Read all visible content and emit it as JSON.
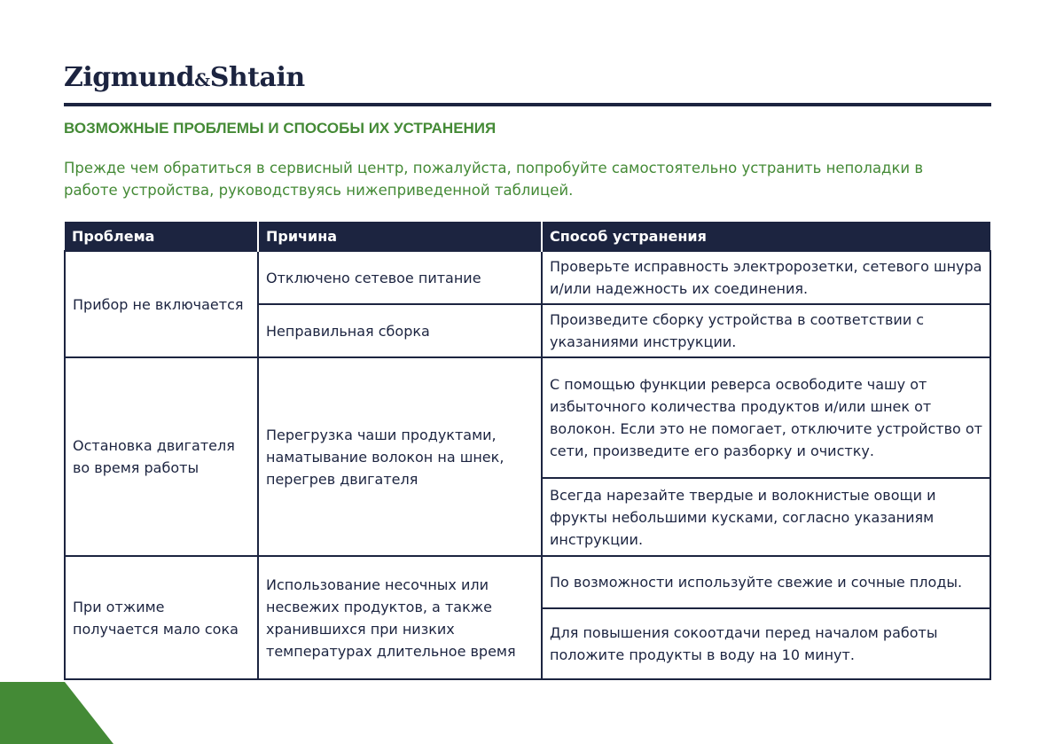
{
  "logo": {
    "part1": "Zigmund",
    "amp": "&",
    "part2": "Shtain"
  },
  "title": "ВОЗМОЖНЫЕ ПРОБЛЕМЫ И СПОСОБЫ ИХ УСТРАНЕНИЯ",
  "intro": "Прежде чем обратиться в сервисный центр, пожалуйста, попробуйте самостоятельно устранить неполадки в работе устройства, руководствуясь нижеприведенной таблицей.",
  "colors": {
    "navy": "#1c2440",
    "green": "#448a36"
  },
  "table": {
    "headers": [
      "Проблема",
      "Причина",
      "Способ  устранения"
    ],
    "rows": [
      {
        "problem": "Прибор не включается",
        "causes": [
          {
            "cause": "Отключено сетевое питание",
            "solutions": [
              "Проверьте исправность электророзетки, сетевого шнура и/или надежность их соединения."
            ]
          },
          {
            "cause": "Неправильная сборка",
            "solutions": [
              "Произведите сборку устройства в соответствии с указаниями инструкции."
            ]
          }
        ]
      },
      {
        "problem": "Остановка двигателя во время работы",
        "causes": [
          {
            "cause": "Перегрузка чаши продуктами, наматывание волокон на шнек, перегрев двигателя",
            "solutions": [
              "С помощью функции реверса освободите чашу от избыточного количества продуктов и/или шнек от волокон. Если это не помогает, отключите устройство от сети, произведите его разборку и очистку.",
              "Всегда нарезайте твердые и волокнистые овощи и фрукты небольшими кусками, согласно указаниям инструкции."
            ]
          }
        ]
      },
      {
        "problem": "При отжиме получается мало сока",
        "causes": [
          {
            "cause": "Использование несочных или несвежих продуктов, а также хранившихся при низких температурах длительное время",
            "solutions": [
              "По возможности используйте свежие и сочные плоды.",
              "Для повышения сокоотдачи перед началом работы положите продукты в воду на 10 минут."
            ]
          }
        ]
      }
    ]
  }
}
